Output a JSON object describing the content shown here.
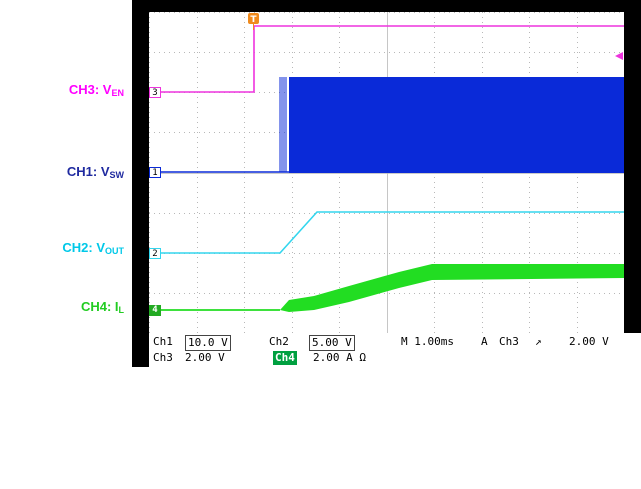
{
  "labels": {
    "ch3": {
      "main": "CH3: V",
      "sub": "EN",
      "color": "#ff00ff"
    },
    "ch1": {
      "main": "CH1: V",
      "sub": "SW",
      "color": "#1f2aa0"
    },
    "ch2": {
      "main": "CH2: V",
      "sub": "OUT",
      "color": "#00c8e8"
    },
    "ch4": {
      "main": "CH4: I",
      "sub": "L",
      "color": "#22cc22"
    }
  },
  "channel_markers": {
    "ch3": "3",
    "ch1": "1",
    "ch2": "2",
    "ch4": "4"
  },
  "trigger_marker": "T",
  "status_bar": {
    "row1": {
      "ch1_label": "Ch1",
      "ch1_scale": "10.0 V",
      "ch2_label": "Ch2",
      "ch2_scale": "5.00 V",
      "timebase": "M 1.00ms",
      "mode": "A",
      "trig_source": "Ch3",
      "trig_slope": "↗",
      "trig_level": "2.00 V"
    },
    "row2": {
      "ch3_label": "Ch3",
      "ch3_scale": "2.00 V",
      "ch4_label": "Ch4",
      "ch4_scale": "2.00 A Ω"
    }
  },
  "colors": {
    "ch1": "#0a2ad8",
    "ch2": "#33d6ee",
    "ch3": "#ee33dd",
    "ch4": "#22dd22",
    "trigger": "#f08a1c",
    "grid": "#b8b8b8"
  }
}
